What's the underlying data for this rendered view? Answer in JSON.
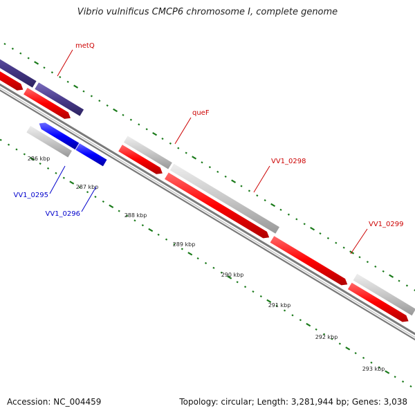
{
  "title": "Vibrio vulnificus CMCP6 chromosome I, complete genome",
  "footer": {
    "accession": "Accession: NC_004459",
    "summary": "Topology: circular; Length: 3,281,944 bp; Genes: 3,038"
  },
  "scale": {
    "ticks": [
      {
        "label": "286 kbp"
      },
      {
        "label": "287 kbp"
      },
      {
        "label": "288 kbp"
      },
      {
        "label": "289 kbp"
      },
      {
        "label": "290 kbp"
      },
      {
        "label": "291 kbp"
      },
      {
        "label": "292 kbp"
      },
      {
        "label": "293 kbp"
      }
    ]
  },
  "gene_labels": [
    {
      "name": "metQ",
      "color": "#cc0000"
    },
    {
      "name": "queF",
      "color": "#cc0000"
    },
    {
      "name": "VV1_0298",
      "color": "#cc0000"
    },
    {
      "name": "VV1_0299",
      "color": "#cc0000"
    },
    {
      "name": "VV1_0295",
      "color": "#0000cc"
    },
    {
      "name": "VV1_0296",
      "color": "#0000cc"
    }
  ],
  "colors": {
    "forward_cds": "#ff0000",
    "reverse_cds": "#0000ff",
    "rna_or_other": "#c8c8c8",
    "cog_track": "#4a3c8c",
    "tick_marks": "#1a7a1a",
    "backbone": "#888888"
  }
}
